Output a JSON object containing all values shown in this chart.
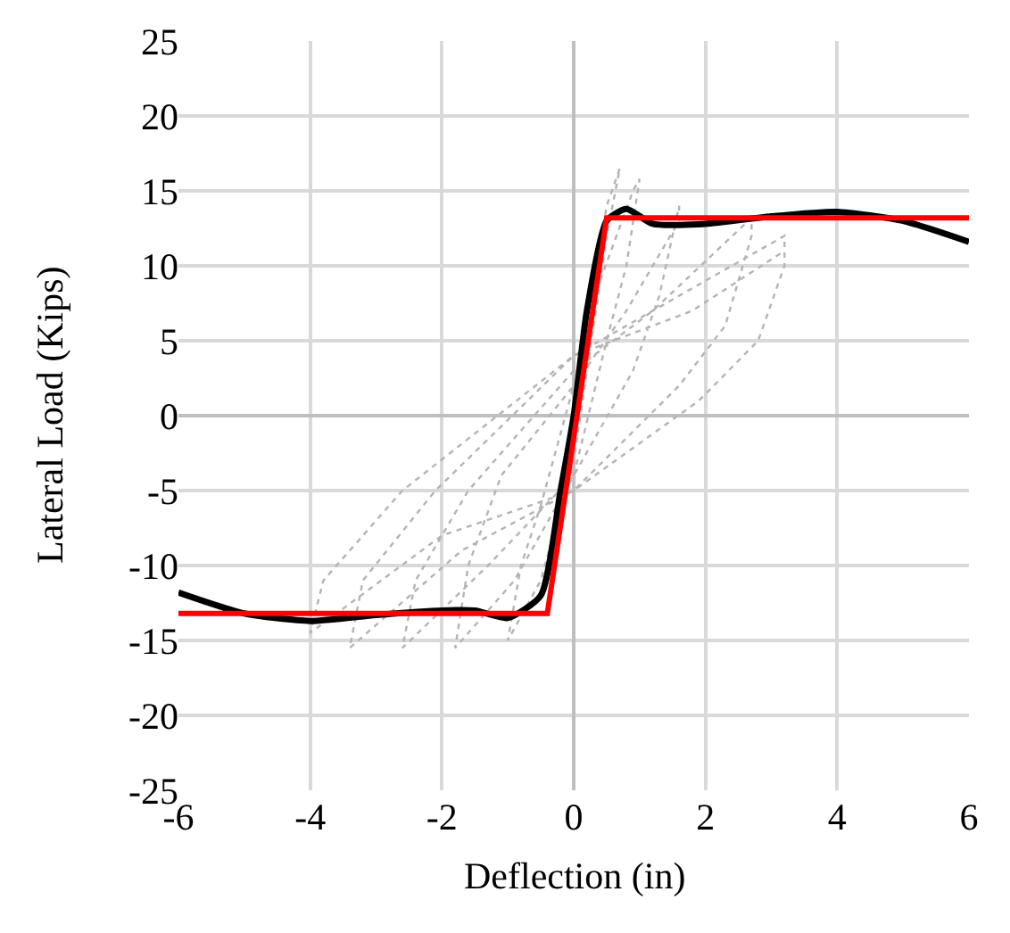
{
  "chart_data": {
    "type": "line",
    "xlabel": "Deflection (in)",
    "ylabel": "Lateral Load (Kips)",
    "xlim": [
      -6,
      6
    ],
    "ylim": [
      -25,
      25
    ],
    "xticks": [
      -6,
      -4,
      -2,
      0,
      2,
      4,
      6
    ],
    "yticks": [
      -25,
      -20,
      -15,
      -10,
      -5,
      0,
      5,
      10,
      15,
      20,
      25
    ],
    "grid": true,
    "marker": "none",
    "series": [
      {
        "color": "#b4b4b4",
        "line_style": "dotted",
        "x": [
          0,
          0.2,
          0.5,
          0.7,
          0.5,
          0.3,
          0,
          -0.5,
          -1.0,
          -0.8,
          -0.5,
          0,
          0.4,
          0.9,
          1.0,
          0.8,
          0.5,
          0,
          -0.9,
          -1.8,
          -1.6,
          -1.1,
          0,
          0.8,
          1.6,
          1.6,
          1.3,
          0.9,
          0,
          -1.3,
          -2.6,
          -2.4,
          -1.6,
          0,
          1.2,
          2.7,
          2.7,
          2.3,
          1.6,
          0,
          -1.7,
          -3.4,
          -3.2,
          -2.1,
          0,
          1.6,
          3.2,
          3.2,
          2.8,
          1.9,
          0,
          -2.0,
          -4.0,
          -3.8,
          -2.6,
          0,
          1.8,
          3.2
        ],
        "values": [
          0,
          6,
          14,
          16.5,
          12,
          6,
          -3,
          -11,
          -15,
          -10,
          -6,
          2,
          9,
          15,
          15.8,
          10,
          5,
          -4,
          -11,
          -15.5,
          -10,
          -4,
          2,
          7,
          13,
          14,
          8,
          3,
          -4,
          -10,
          -15.5,
          -11,
          -5,
          3,
          7,
          13.2,
          12,
          6,
          2,
          -5,
          -9,
          -15.5,
          -11,
          -5,
          4,
          8,
          12,
          10,
          5,
          1,
          -5,
          -8,
          -14.5,
          -11,
          -5,
          4,
          7,
          11
        ]
      },
      {
        "color": "#000000",
        "line_style": "solid",
        "x": [
          -6,
          -5,
          -4,
          -3,
          -2,
          -1.5,
          -1,
          -0.5,
          -0.2,
          0,
          0.2,
          0.5,
          0.8,
          1.2,
          2,
          3,
          4,
          5,
          6
        ],
        "values": [
          -11.8,
          -13.2,
          -13.7,
          -13.3,
          -13,
          -13,
          -13.5,
          -12,
          -5,
          0,
          7,
          13,
          13.8,
          12.8,
          12.8,
          13.3,
          13.6,
          13,
          11.6
        ]
      },
      {
        "color": "#ff0000",
        "line_style": "solid",
        "x": [
          -6,
          -0.4,
          0.5,
          6
        ],
        "values": [
          -13.2,
          -13.2,
          13.2,
          13.2
        ]
      }
    ]
  }
}
